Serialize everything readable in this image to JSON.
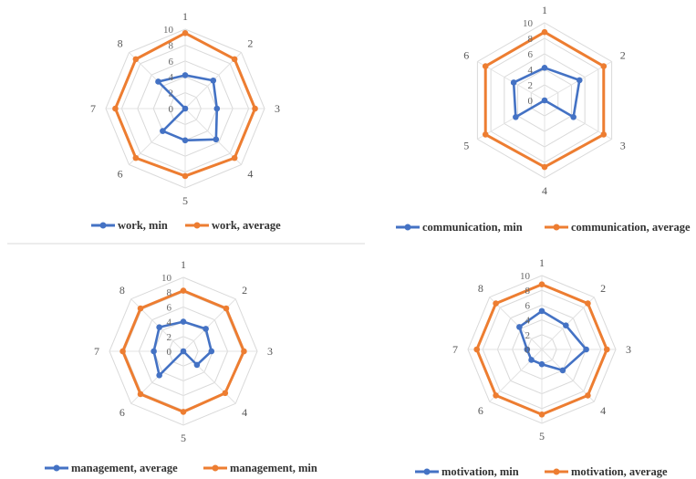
{
  "chart_data": [
    {
      "type": "radar",
      "categories": [
        "1",
        "2",
        "3",
        "4",
        "5",
        "6",
        "7",
        "8"
      ],
      "rticks": [
        "0",
        "2",
        "4",
        "6",
        "8",
        "10"
      ],
      "rlim": [
        0,
        10
      ],
      "grid": true,
      "legend_position": "bottom",
      "series": [
        {
          "name": "work, min",
          "color": "#4472C4",
          "values": [
            4.2,
            5.0,
            4.0,
            5.5,
            4.0,
            4.0,
            0.0,
            4.8
          ]
        },
        {
          "name": "work, average",
          "color": "#ED7D31",
          "values": [
            9.5,
            8.8,
            8.8,
            8.8,
            8.5,
            8.8,
            8.8,
            8.8
          ]
        }
      ]
    },
    {
      "type": "radar",
      "categories": [
        "1",
        "2",
        "3",
        "4",
        "5",
        "6"
      ],
      "rticks": [
        "0",
        "2",
        "4",
        "6",
        "8",
        "10"
      ],
      "rlim": [
        0,
        10
      ],
      "grid": true,
      "legend_position": "bottom",
      "series": [
        {
          "name": "communication, min",
          "color": "#4472C4",
          "values": [
            4.2,
            5.2,
            4.3,
            0.0,
            4.3,
            4.6
          ]
        },
        {
          "name": "communication, average",
          "color": "#ED7D31",
          "values": [
            8.8,
            8.8,
            8.8,
            8.6,
            8.8,
            8.8
          ]
        }
      ]
    },
    {
      "type": "radar",
      "categories": [
        "1",
        "2",
        "3",
        "4",
        "5",
        "6",
        "7",
        "8"
      ],
      "rticks": [
        "0",
        "2",
        "4",
        "6",
        "8",
        "10"
      ],
      "rlim": [
        0,
        10
      ],
      "grid": true,
      "legend_position": "bottom",
      "series": [
        {
          "name": "management, average",
          "color": "#4472C4",
          "values": [
            4.0,
            4.3,
            3.8,
            2.6,
            0.0,
            4.6,
            4.0,
            4.6
          ]
        },
        {
          "name": "management, min",
          "color": "#ED7D31",
          "values": [
            8.2,
            8.2,
            8.2,
            8.0,
            8.2,
            8.2,
            8.2,
            8.2
          ]
        }
      ]
    },
    {
      "type": "radar",
      "categories": [
        "1",
        "2",
        "3",
        "4",
        "5",
        "6",
        "7",
        "8"
      ],
      "rticks": [
        "0",
        "2",
        "4",
        "6",
        "8",
        "10"
      ],
      "rlim": [
        0,
        10
      ],
      "grid": true,
      "legend_position": "bottom",
      "series": [
        {
          "name": "motivation, min",
          "color": "#4472C4",
          "values": [
            5.2,
            4.6,
            6.0,
            4.0,
            2.0,
            2.0,
            2.0,
            4.3
          ]
        },
        {
          "name": "motivation, average",
          "color": "#ED7D31",
          "values": [
            8.8,
            8.8,
            8.8,
            8.8,
            8.8,
            8.8,
            8.8,
            8.8
          ]
        }
      ]
    }
  ]
}
